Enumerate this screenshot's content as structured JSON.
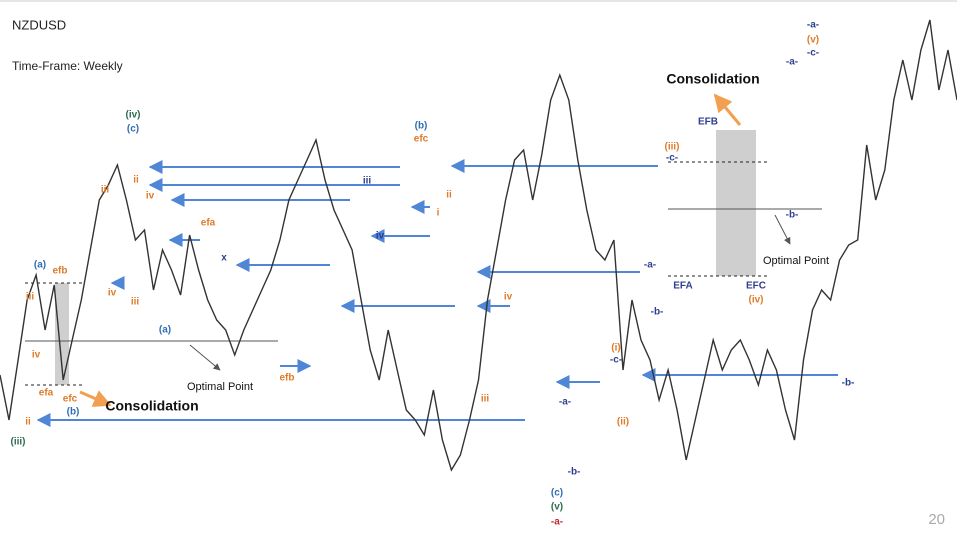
{
  "chart_data": {
    "type": "line",
    "title": "NZDUSD",
    "subtitle": "Time-Frame: Weekly",
    "page_number": "20",
    "series": [
      {
        "name": "NZDUSD",
        "color": "#333333",
        "values": [
          166,
          121,
          181,
          241,
          266,
          211,
          256,
          161,
          201,
          241,
          291,
          341,
          356,
          376,
          341,
          301,
          311,
          251,
          291,
          271,
          246,
          306,
          271,
          241,
          221,
          211,
          186,
          211,
          231,
          251,
          271,
          301,
          341,
          361,
          381,
          401,
          361,
          331,
          311,
          291,
          241,
          191,
          161,
          211,
          171,
          131,
          121,
          106,
          151,
          101,
          71,
          86,
          121,
          161,
          241,
          291,
          341,
          381,
          391,
          341,
          386,
          441,
          466,
          441,
          381,
          331,
          291,
          281,
          301,
          171,
          241,
          201,
          181,
          141,
          171,
          131,
          81,
          121,
          161,
          201,
          171,
          191,
          201,
          181,
          156,
          191,
          171,
          131,
          101,
          181,
          231,
          251,
          241,
          281,
          296,
          301,
          396,
          341,
          371,
          441,
          481,
          441,
          491,
          521,
          451,
          491,
          441
        ]
      }
    ],
    "ylim": [
      0,
      541
    ],
    "annotations": [
      {
        "text": "(iii)",
        "color": "#2e6b4f"
      },
      {
        "text": "ii",
        "color": "#e07b2a"
      },
      {
        "text": "(b)",
        "color": "#2f6db5"
      },
      {
        "text": "efc",
        "color": "#e07b2a"
      },
      {
        "text": "efa",
        "color": "#e07b2a"
      },
      {
        "text": "iv",
        "color": "#e07b2a"
      },
      {
        "text": "iii",
        "color": "#e07b2a"
      },
      {
        "text": "(a)",
        "color": "#2f6db5"
      },
      {
        "text": "efb",
        "color": "#e07b2a"
      },
      {
        "text": "(iv)",
        "color": "#2e6b4f"
      },
      {
        "text": "(c)",
        "color": "#2f6db5"
      },
      {
        "text": "iii",
        "color": "#e07b2a"
      },
      {
        "text": "iv",
        "color": "#e07b2a"
      },
      {
        "text": "ii",
        "color": "#e07b2a"
      },
      {
        "text": "iv",
        "color": "#e07b2a"
      },
      {
        "text": "iii",
        "color": "#e07b2a"
      },
      {
        "text": "(a)",
        "color": "#2f6db5"
      },
      {
        "text": "efa",
        "color": "#e07b2a"
      },
      {
        "text": "x",
        "color": "#2f3f8f"
      },
      {
        "text": "efb",
        "color": "#e07b2a"
      },
      {
        "text": "(b)",
        "color": "#2f6db5"
      },
      {
        "text": "efc",
        "color": "#e07b2a"
      },
      {
        "text": "iii",
        "color": "#2f3f8f"
      },
      {
        "text": "iv",
        "color": "#2f3f8f"
      },
      {
        "text": "ii",
        "color": "#e07b2a"
      },
      {
        "text": "i",
        "color": "#e07b2a"
      },
      {
        "text": "iii",
        "color": "#e07b2a"
      },
      {
        "text": "iv",
        "color": "#e07b2a"
      },
      {
        "text": "(c)",
        "color": "#2f6db5"
      },
      {
        "text": "(v)",
        "color": "#2e6b4f"
      },
      {
        "text": "-a-",
        "color": "#c0282d"
      },
      {
        "text": "-b-",
        "color": "#2f3f8f"
      },
      {
        "text": "-a-",
        "color": "#2f3f8f"
      },
      {
        "text": "(i)",
        "color": "#e07b2a"
      },
      {
        "text": "-c-",
        "color": "#2f3f8f"
      },
      {
        "text": "(ii)",
        "color": "#e07b2a"
      },
      {
        "text": "-a-",
        "color": "#2f3f8f"
      },
      {
        "text": "-b-",
        "color": "#2f3f8f"
      },
      {
        "text": "(iii)",
        "color": "#e07b2a"
      },
      {
        "text": "-c-",
        "color": "#2f3f8f"
      },
      {
        "text": "EFB",
        "color": "#2f3f8f"
      },
      {
        "text": "EFA",
        "color": "#2f3f8f"
      },
      {
        "text": "EFC",
        "color": "#2f3f8f"
      },
      {
        "text": "(iv)",
        "color": "#e07b2a"
      },
      {
        "text": "-b-",
        "color": "#2f3f8f"
      },
      {
        "text": "-a-",
        "color": "#1f3f8f"
      },
      {
        "text": "(v)",
        "color": "#e07b2a"
      },
      {
        "text": "-c-",
        "color": "#2f3f8f"
      },
      {
        "text": "-a-",
        "color": "#2f3f8f"
      },
      {
        "text": "-b-",
        "color": "#1f3f8f"
      }
    ],
    "callouts": [
      "Consolidation",
      "Optimal Point",
      "Consolidation",
      "Optimal Point"
    ]
  }
}
